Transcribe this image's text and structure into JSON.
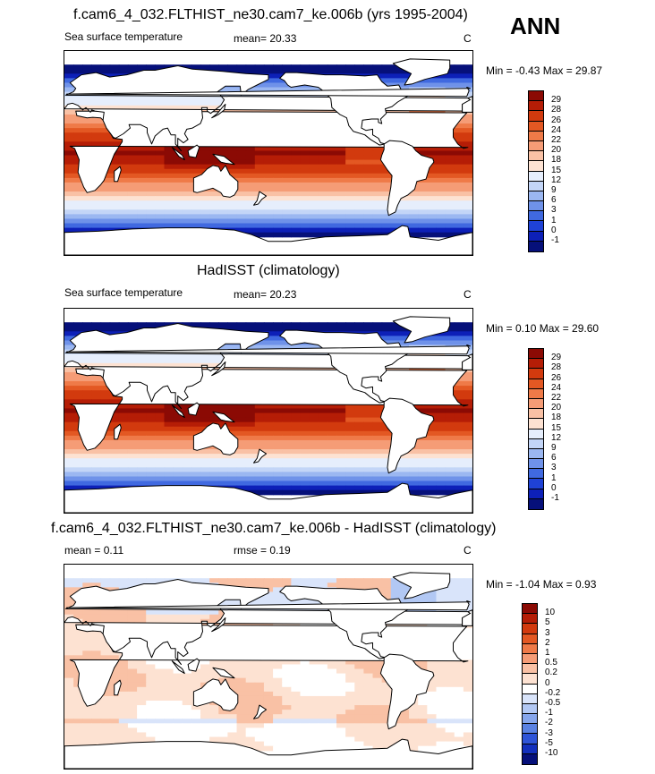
{
  "season": "ANN",
  "panels": [
    {
      "title": "f.cam6_4_032.FLTHIST_ne30.cam7_ke.006b (yrs 1995-2004)",
      "left_label": "Sea surface temperature",
      "center_label": "mean=  20.33",
      "units": "C",
      "minmax": "Min =  -0.43 Max =  29.87",
      "colorbar": {
        "labels": [
          "29",
          "28",
          "26",
          "24",
          "22",
          "20",
          "18",
          "15",
          "12",
          "9",
          "6",
          "3",
          "1",
          "0",
          "-1"
        ],
        "colors": [
          "#8b0a04",
          "#b51d06",
          "#d23a0e",
          "#e35823",
          "#ef7a48",
          "#f59c76",
          "#f9c1a5",
          "#fde2d2",
          "#e6eefc",
          "#c3d5f7",
          "#9bb7f1",
          "#6f92e9",
          "#4069e0",
          "#1f42d6",
          "#0d20b8",
          "#06107a"
        ]
      },
      "map_style": "sst"
    },
    {
      "title": "HadISST (climatology)",
      "left_label": "Sea surface temperature",
      "center_label": "mean=  20.23",
      "units": "C",
      "minmax": "Min =   0.10 Max =  29.60",
      "colorbar": {
        "labels": [
          "29",
          "28",
          "26",
          "24",
          "22",
          "20",
          "18",
          "15",
          "12",
          "9",
          "6",
          "3",
          "1",
          "0",
          "-1"
        ],
        "colors": [
          "#8b0a04",
          "#b51d06",
          "#d23a0e",
          "#e35823",
          "#ef7a48",
          "#f59c76",
          "#f9c1a5",
          "#fde2d2",
          "#e6eefc",
          "#c3d5f7",
          "#9bb7f1",
          "#6f92e9",
          "#4069e0",
          "#1f42d6",
          "#0d20b8",
          "#06107a"
        ]
      },
      "map_style": "sst"
    },
    {
      "title": "f.cam6_4_032.FLTHIST_ne30.cam7_ke.006b - HadISST (climatology)",
      "left_label": "mean =   0.11",
      "center_label": "rmse =   0.19",
      "units": "C",
      "minmax": "Min =  -1.04 Max =   0.93",
      "colorbar": {
        "labels": [
          "10",
          "5",
          "3",
          "2",
          "1",
          "0.5",
          "0.2",
          "0",
          "-0.2",
          "-0.5",
          "-1",
          "-2",
          "-3",
          "-5",
          "-10"
        ],
        "colors": [
          "#8b0a04",
          "#b51d06",
          "#d23a0e",
          "#e35823",
          "#ef7a48",
          "#f59c76",
          "#f9c1a5",
          "#fde2d2",
          "#ffffff",
          "#d9e4fa",
          "#b2c8f4",
          "#86a6ec",
          "#5a82e3",
          "#2f55d8",
          "#1330bd",
          "#06107a"
        ]
      },
      "map_style": "diff"
    }
  ]
}
